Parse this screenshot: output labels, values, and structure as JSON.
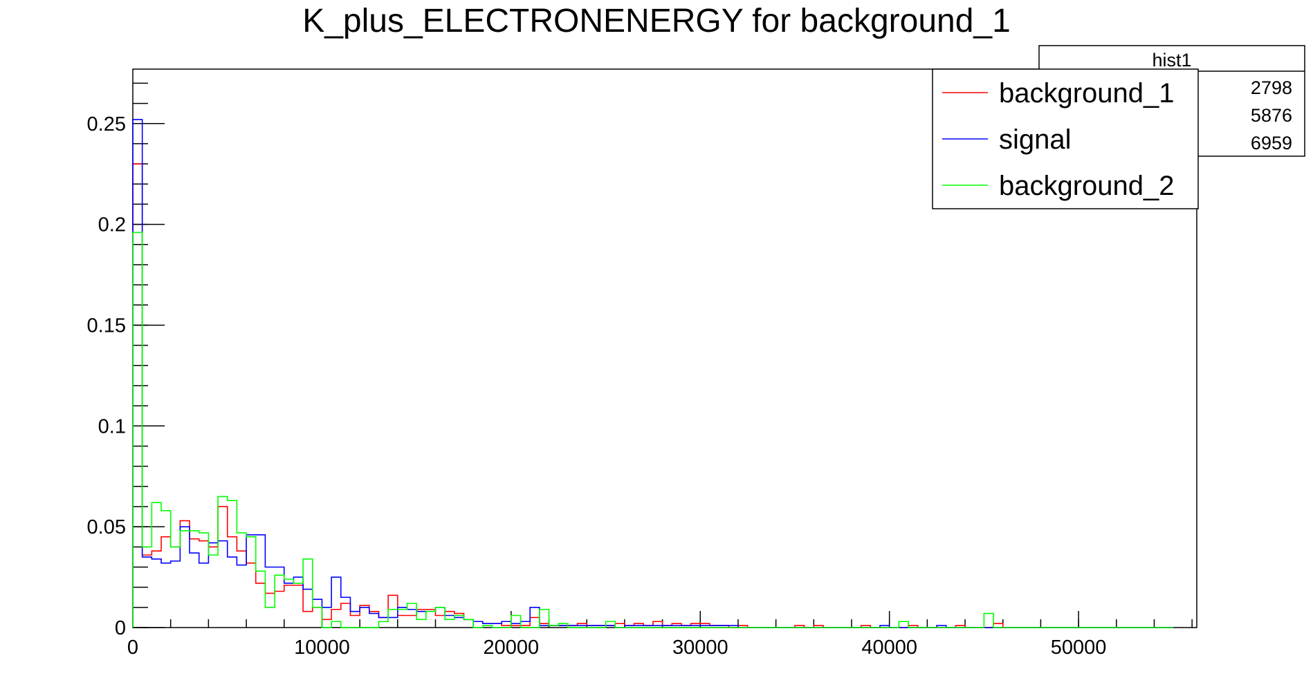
{
  "chart_data": {
    "type": "histogram",
    "title": "K_plus_ELECTRONENERGY for background_1",
    "xlabel": "",
    "ylabel": "",
    "xlim": [
      0,
      56250
    ],
    "ylim": [
      0,
      0.277
    ],
    "x_ticks": [
      0,
      10000,
      20000,
      30000,
      40000,
      50000
    ],
    "x_tick_labels": [
      "0",
      "10000",
      "20000",
      "30000",
      "40000",
      "50000"
    ],
    "y_ticks": [
      0,
      0.05,
      0.1,
      0.15,
      0.2,
      0.25
    ],
    "y_tick_labels": [
      "0",
      "0.05",
      "0.1",
      "0.15",
      "0.2",
      "0.25"
    ],
    "grid": false,
    "legend_position": "top-right",
    "bin_edges": [
      0,
      500,
      1000,
      1500,
      2000,
      2500,
      3000,
      3500,
      4000,
      4500,
      5000,
      5500,
      6000,
      6500,
      7000,
      7500,
      8000,
      8500,
      9000,
      9500,
      10000,
      10500,
      11000,
      11500,
      12000,
      12500,
      13000,
      13500,
      14000,
      14500,
      15000,
      15500,
      16000,
      16500,
      17000,
      17500,
      18000,
      18500,
      19000,
      19500,
      20000,
      20500,
      21000,
      21500,
      22000,
      22500,
      23000,
      23500,
      24000,
      24500,
      25000,
      25500,
      26000,
      26500,
      27000,
      27500,
      28000,
      28500,
      29000,
      29500,
      30000,
      30500,
      31000,
      31500,
      32000,
      32500,
      33000,
      33500,
      34000,
      34500,
      35000,
      35500,
      36000,
      36500,
      37000,
      37500,
      38000,
      38500,
      39000,
      39500,
      40000,
      40500,
      41000,
      41500,
      42000,
      42500,
      43000,
      43500,
      44000,
      44500,
      45000,
      45500,
      46000,
      46500,
      47000,
      47500,
      48000,
      48500,
      49000,
      49500,
      50000,
      50500,
      51000,
      51500,
      52000,
      52500,
      53000,
      53500,
      54000,
      54500,
      55000
    ],
    "series": [
      {
        "name": "background_1",
        "color": "#ff0000",
        "values": [
          0.23,
          0.036,
          0.038,
          0.045,
          0.04,
          0.053,
          0.044,
          0.043,
          0.04,
          0.06,
          0.045,
          0.038,
          0.032,
          0.022,
          0.017,
          0.018,
          0.021,
          0.021,
          0.008,
          0.01,
          0.004,
          0.009,
          0.012,
          0.006,
          0.011,
          0.008,
          0.005,
          0.016,
          0.006,
          0.006,
          0.009,
          0.009,
          0.006,
          0.008,
          0.007,
          0.004,
          0.003,
          0.002,
          0.002,
          0.001,
          0.001,
          0.001,
          0.005,
          0.002,
          0.001,
          0.001,
          0.001,
          0.002,
          0.001,
          0.001,
          0.001,
          0.002,
          0.001,
          0.002,
          0.001,
          0.003,
          0.001,
          0.002,
          0.001,
          0.002,
          0.002,
          0.001,
          0.001,
          0.0,
          0.001,
          0.0,
          0.0,
          0.0,
          0.0,
          0.0,
          0.001,
          0.0,
          0.001,
          0.0,
          0.0,
          0.0,
          0.0,
          0.001,
          0.0,
          0.0,
          0.0,
          0.0,
          0.001,
          0.0,
          0.0,
          0.0,
          0.0,
          0.001,
          0.0,
          0.0,
          0.0,
          0.002,
          0.0,
          0.0,
          0.0,
          0.0,
          0.0,
          0.0,
          0.0,
          0.0,
          0.0,
          0.0,
          0.0,
          0.0,
          0.0,
          0.0,
          0.0,
          0.0,
          0.0,
          0.0
        ]
      },
      {
        "name": "signal",
        "color": "#0000ff",
        "values": [
          0.252,
          0.035,
          0.034,
          0.032,
          0.033,
          0.05,
          0.037,
          0.032,
          0.042,
          0.043,
          0.035,
          0.031,
          0.046,
          0.046,
          0.03,
          0.03,
          0.022,
          0.025,
          0.019,
          0.014,
          0.01,
          0.025,
          0.015,
          0.008,
          0.01,
          0.007,
          0.005,
          0.005,
          0.01,
          0.009,
          0.008,
          0.008,
          0.01,
          0.006,
          0.005,
          0.004,
          0.003,
          0.002,
          0.002,
          0.003,
          0.002,
          0.003,
          0.01,
          0.001,
          0.001,
          0.001,
          0.001,
          0.001,
          0.001,
          0.001,
          0.001,
          0.0,
          0.001,
          0.001,
          0.001,
          0.001,
          0.001,
          0.001,
          0.001,
          0.001,
          0.001,
          0.001,
          0.001,
          0.001,
          0.0,
          0.0,
          0.0,
          0.0,
          0.0,
          0.0,
          0.0,
          0.0,
          0.0,
          0.0,
          0.0,
          0.0,
          0.0,
          0.0,
          0.0,
          0.001,
          0.0,
          0.0,
          0.0,
          0.0,
          0.0,
          0.001,
          0.0,
          0.0,
          0.0,
          0.0,
          0.0,
          0.0,
          0.0,
          0.0,
          0.0,
          0.0,
          0.0,
          0.0,
          0.0,
          0.0,
          0.0,
          0.0,
          0.0,
          0.0,
          0.0,
          0.0,
          0.0,
          0.0,
          0.0,
          0.0
        ]
      },
      {
        "name": "background_2",
        "color": "#00ff00",
        "values": [
          0.196,
          0.04,
          0.062,
          0.058,
          0.04,
          0.048,
          0.048,
          0.047,
          0.036,
          0.065,
          0.063,
          0.047,
          0.045,
          0.028,
          0.01,
          0.026,
          0.024,
          0.022,
          0.034,
          0.01,
          0.0,
          0.003,
          0.0,
          0.0,
          0.0,
          0.0,
          0.003,
          0.009,
          0.009,
          0.012,
          0.004,
          0.008,
          0.01,
          0.004,
          0.006,
          0.004,
          0.0,
          0.001,
          0.0,
          0.0,
          0.006,
          0.0,
          0.0,
          0.009,
          0.001,
          0.002,
          0.0,
          0.0,
          0.0,
          0.0,
          0.003,
          0.0,
          0.0,
          0.0,
          0.0,
          0.0,
          0.0,
          0.0,
          0.0,
          0.0,
          0.0,
          0.0,
          0.0,
          0.0,
          0.0,
          0.0,
          0.0,
          0.0,
          0.0,
          0.0,
          0.0,
          0.0,
          0.0,
          0.0,
          0.0,
          0.0,
          0.0,
          0.0,
          0.0,
          0.0,
          0.0,
          0.003,
          0.0,
          0.0,
          0.0,
          0.0,
          0.0,
          0.0,
          0.0,
          0.0,
          0.007,
          0.0,
          0.0,
          0.0,
          0.0,
          0.0,
          0.0,
          0.0,
          0.0,
          0.0,
          0.0,
          0.0,
          0.0,
          0.0,
          0.0,
          0.0,
          0.0,
          0.0,
          0.0,
          0.0
        ]
      }
    ],
    "stats_box": {
      "title": "hist1",
      "values": [
        "2798",
        "5876",
        "6959"
      ]
    }
  }
}
